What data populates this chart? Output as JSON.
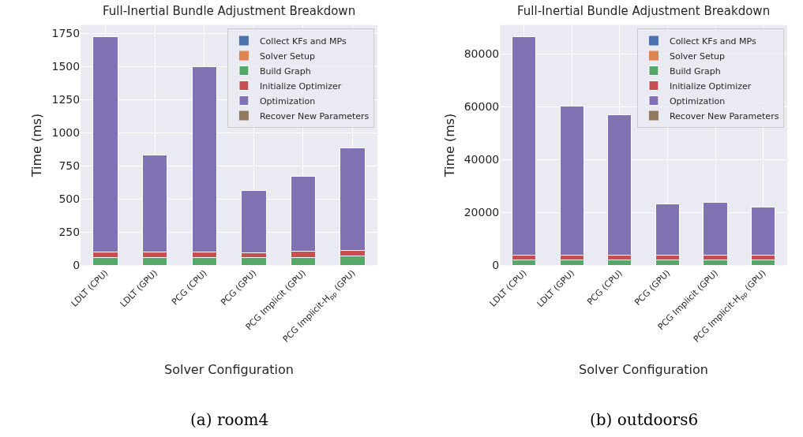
{
  "chart_data": [
    {
      "type": "bar",
      "title": "Full-Inertial Bundle Adjustment Breakdown",
      "xlabel": "Solver Configuration",
      "ylabel": "Time (ms)",
      "stacked": true,
      "grid": true,
      "legend": "top right",
      "categories": [
        "LDLT (CPU)",
        "LDLT (GPU)",
        "PCG (CPU)",
        "PCG (GPU)",
        "PCG Implicit (GPU)",
        "PCG Implicit-H$_{pp}$ (GPU)"
      ],
      "ylim": [
        0,
        1815
      ],
      "yticks": [
        0,
        250,
        500,
        750,
        1000,
        1250,
        1500,
        1750
      ],
      "series": [
        {
          "name": "Collect KFs and MPs",
          "color": "#4c72b0",
          "values": [
            0,
            0,
            0,
            0,
            0,
            0
          ]
        },
        {
          "name": "Solver Setup",
          "color": "#dd8452",
          "values": [
            0,
            0,
            0,
            0,
            0,
            0
          ]
        },
        {
          "name": "Build Graph",
          "color": "#55a868",
          "values": [
            60,
            60,
            60,
            60,
            60,
            68
          ]
        },
        {
          "name": "Initialize Optimizer",
          "color": "#c44e52",
          "values": [
            40,
            38,
            38,
            37,
            45,
            42
          ]
        },
        {
          "name": "Optimization",
          "color": "#8172b3",
          "values": [
            1625,
            737,
            1402,
            468,
            570,
            775
          ]
        },
        {
          "name": "Recover New Parameters",
          "color": "#937860",
          "values": [
            0,
            0,
            0,
            0,
            0,
            0
          ]
        }
      ],
      "annotations": [
        "(a) room4"
      ]
    },
    {
      "type": "bar",
      "title": "Full-Inertial Bundle Adjustment Breakdown",
      "xlabel": "Solver Configuration",
      "ylabel": "Time (ms)",
      "stacked": true,
      "grid": true,
      "legend": "top right",
      "categories": [
        "LDLT (CPU)",
        "LDLT (GPU)",
        "PCG (CPU)",
        "PCG (GPU)",
        "PCG Implicit (GPU)",
        "PCG Implicit-H$_{pp}$ (GPU)"
      ],
      "ylim": [
        0,
        90900
      ],
      "yticks": [
        0,
        20000,
        40000,
        60000,
        80000
      ],
      "series": [
        {
          "name": "Collect KFs and MPs",
          "color": "#4c72b0",
          "values": [
            0,
            0,
            0,
            0,
            0,
            0
          ]
        },
        {
          "name": "Solver Setup",
          "color": "#dd8452",
          "values": [
            0,
            0,
            0,
            0,
            0,
            0
          ]
        },
        {
          "name": "Build Graph",
          "color": "#55a868",
          "values": [
            2000,
            2100,
            2100,
            2000,
            2100,
            2100
          ]
        },
        {
          "name": "Initialize Optimizer",
          "color": "#c44e52",
          "values": [
            1700,
            1600,
            1800,
            1700,
            1800,
            1600
          ]
        },
        {
          "name": "Optimization",
          "color": "#8172b3",
          "values": [
            82800,
            56600,
            53100,
            19600,
            19800,
            18400
          ]
        },
        {
          "name": "Recover New Parameters",
          "color": "#937860",
          "values": [
            0,
            0,
            0,
            0,
            0,
            0
          ]
        }
      ],
      "annotations": [
        "(b) outdoors6"
      ]
    }
  ]
}
